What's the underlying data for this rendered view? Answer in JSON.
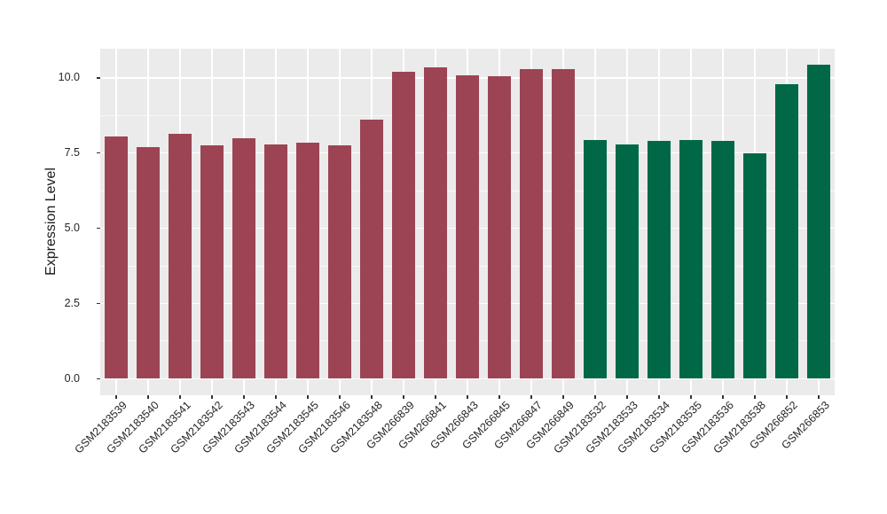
{
  "figure": {
    "kind": "ggplot-style grouped bar chart",
    "background": "#ffffff"
  },
  "chart_data": {
    "type": "bar",
    "title": "",
    "xlabel": "",
    "ylabel": "Expression Level",
    "categories": [
      "GSM2183539",
      "GSM2183540",
      "GSM2183541",
      "GSM2183542",
      "GSM2183543",
      "GSM2183544",
      "GSM2183545",
      "GSM2183546",
      "GSM2183548",
      "GSM266839",
      "GSM266841",
      "GSM266843",
      "GSM266845",
      "GSM266847",
      "GSM266849",
      "GSM2183532",
      "GSM2183533",
      "GSM2183534",
      "GSM2183535",
      "GSM2183536",
      "GSM2183538",
      "GSM266852",
      "GSM266853"
    ],
    "values": [
      8.05,
      7.7,
      8.15,
      7.75,
      8.0,
      7.8,
      7.85,
      7.75,
      8.6,
      10.2,
      10.35,
      10.1,
      10.05,
      10.3,
      10.3,
      7.95,
      7.8,
      7.9,
      7.95,
      7.9,
      7.5,
      9.8,
      10.45
    ],
    "bar_color_keys": [
      "red",
      "red",
      "red",
      "red",
      "red",
      "red",
      "red",
      "red",
      "red",
      "red",
      "red",
      "red",
      "red",
      "red",
      "red",
      "green",
      "green",
      "green",
      "green",
      "green",
      "green",
      "green",
      "green"
    ],
    "colors": {
      "red": "#9C4453",
      "green": "#006847"
    },
    "yticks": [
      0,
      2.5,
      5,
      7.5,
      10
    ],
    "ytick_labels": [
      "0.0",
      "2.5",
      "5.0",
      "7.5",
      "10.0"
    ],
    "y_minor": [
      1.25,
      3.75,
      6.25,
      8.75
    ],
    "ylim": [
      -0.55,
      10.97
    ],
    "grid": true,
    "legend": "none",
    "panel_bg": "#EBEBEB",
    "grid_color": "#FFFFFF",
    "tick_color": "#333333"
  }
}
